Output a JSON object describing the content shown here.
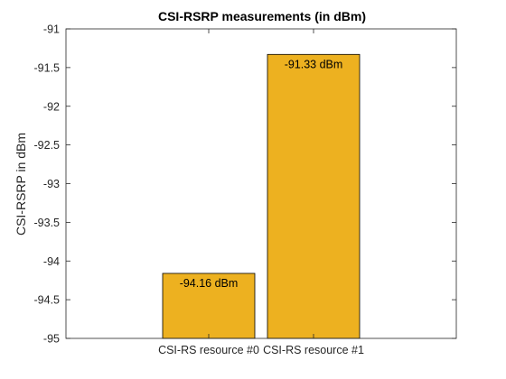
{
  "chart_data": {
    "type": "bar",
    "title": "CSI-RSRP measurements (in dBm)",
    "xlabel": "",
    "ylabel": "CSI-RSRP in dBm",
    "categories": [
      "CSI-RS resource #0",
      "CSI-RS resource #1"
    ],
    "values": [
      -94.16,
      -91.33
    ],
    "data_labels": [
      "-94.16 dBm",
      "-91.33 dBm"
    ],
    "ylim": [
      -95,
      -91
    ],
    "yticks": [
      -91,
      -91.5,
      -92,
      -92.5,
      -93,
      -93.5,
      -94,
      -94.5,
      -95
    ],
    "ytick_labels": [
      "-91",
      "-91.5",
      "-92",
      "-92.5",
      "-93",
      "-93.5",
      "-94",
      "-94.5",
      "-95"
    ],
    "grid": false,
    "legend": "none",
    "bar_color": "#EDB120",
    "axis_color": "#262626"
  }
}
